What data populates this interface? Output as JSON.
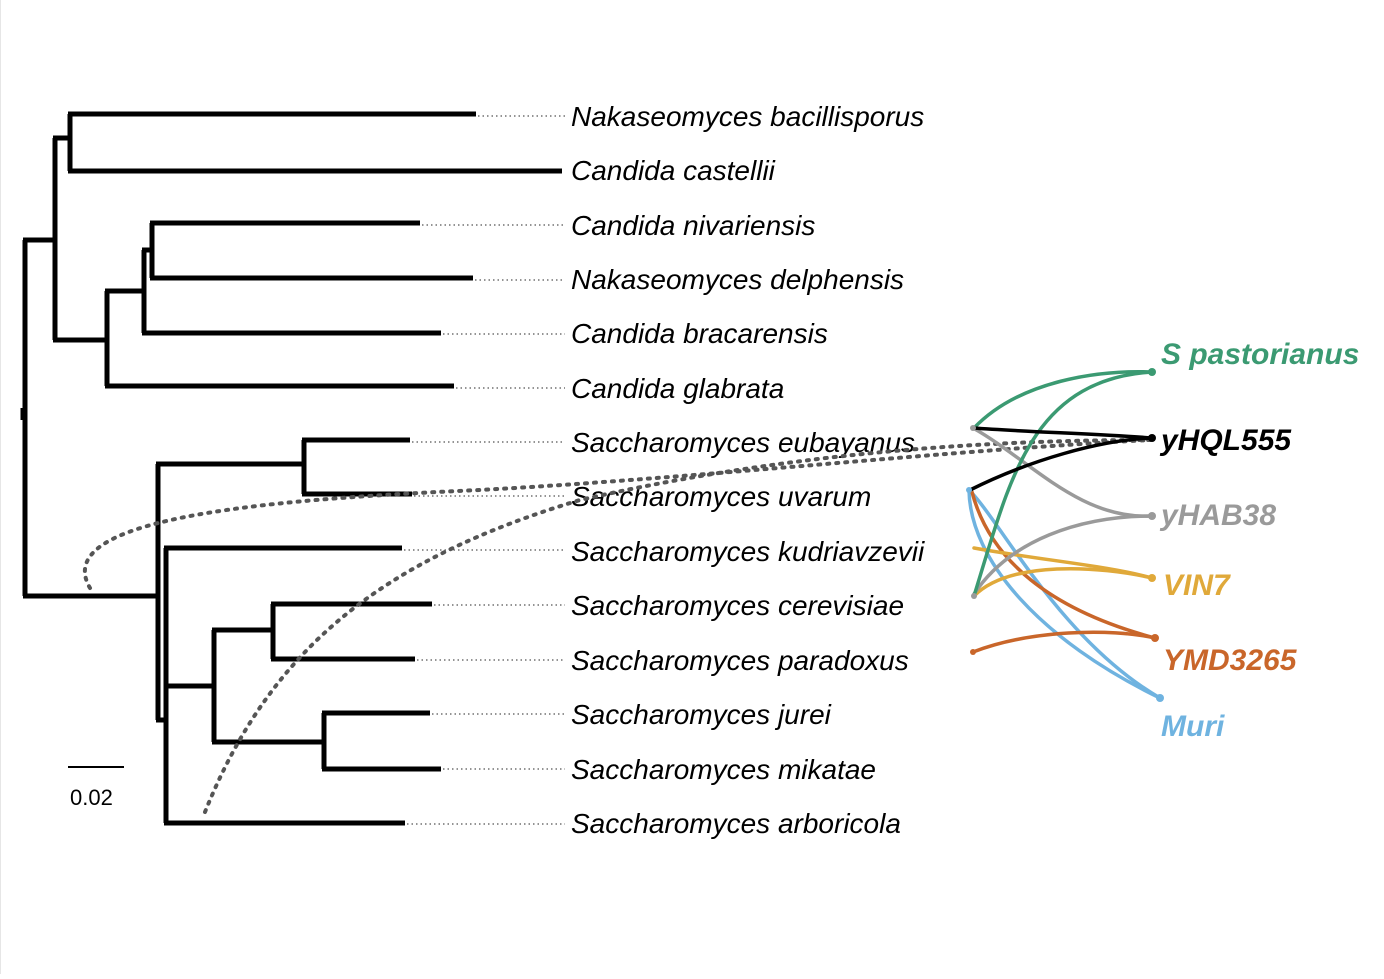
{
  "taxa": [
    "Nakaseomyces bacillisporus",
    "Candida castellii",
    "Candida nivariensis",
    "Nakaseomyces delphensis",
    "Candida bracarensis",
    "Candida glabrata",
    "Saccharomyces eubayanus",
    "Saccharomyces uvarum",
    "Saccharomyces kudriavzevii",
    "Saccharomyces cerevisiae",
    "Saccharomyces paradoxus",
    "Saccharomyces jurei",
    "Saccharomyces mikatae",
    "Saccharomyces arboricola"
  ],
  "hybrids": [
    {
      "label": "S pastorianus",
      "color": "#3b9a72"
    },
    {
      "label": "yHQL555",
      "color": "#000000"
    },
    {
      "label": "yHAB38",
      "color": "#9a9a9a"
    },
    {
      "label": "VIN7",
      "color": "#e0a93a"
    },
    {
      "label": "YMD3265",
      "color": "#c9662a"
    },
    {
      "label": "Muri",
      "color": "#6fb3e0"
    }
  ],
  "scale_bar": {
    "label": "0.02"
  }
}
